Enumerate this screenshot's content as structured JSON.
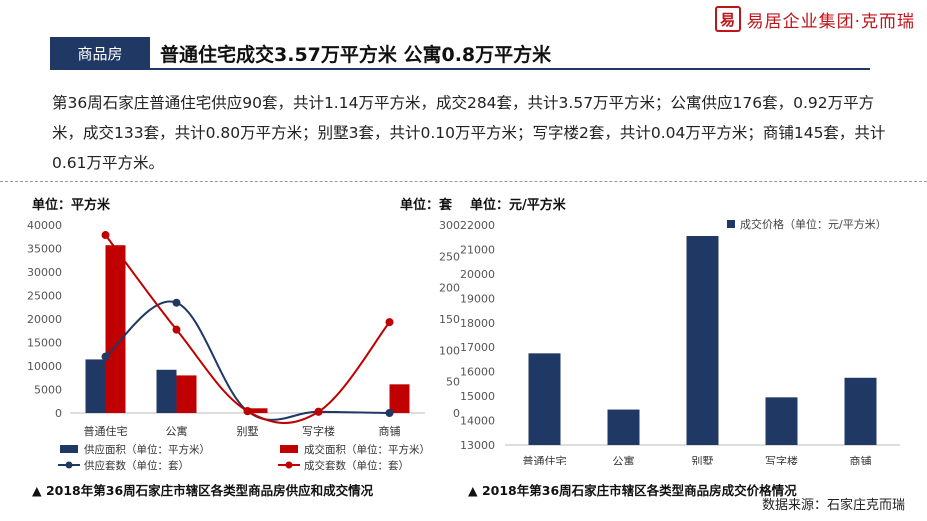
{
  "brand": {
    "seal_char": "易",
    "text": "易居企业集团·克而瑞"
  },
  "section": {
    "badge": "商品房",
    "headline": "普通住宅成交3.57万平方米 公寓0.8万平方米"
  },
  "paragraph": "第36周石家庄普通住宅供应90套，共计1.14万平方米，成交284套，共计3.57万平方米；公寓供应176套，0.92万平方米，成交133套，共计0.80万平方米；别墅3套，共计0.10万平方米；写字楼2套，共计0.04万平方米；商铺145套，共计0.61万平方米。",
  "left_unit_left": "单位：平方米",
  "left_unit_right": "单位：套",
  "right_unit": "单位：元/平方米",
  "caption_left": "▲ 2018年第36周石家庄市辖区各类型商品房供应和成交情况",
  "caption_right": "▲ 2018年第36周石家庄市辖区各类型商品房成交价格情况",
  "source": "数据来源：石家庄克而瑞",
  "colors": {
    "navy": "#1f3864",
    "red": "#c00000"
  },
  "chart_data": [
    {
      "type": "bar+line",
      "categories": [
        "普通住宅",
        "公寓",
        "别墅",
        "写字楼",
        "商铺"
      ],
      "ylim_left": [
        0,
        40000
      ],
      "yticks_left": [
        0,
        5000,
        10000,
        15000,
        20000,
        25000,
        30000,
        35000,
        40000
      ],
      "ylim_right": [
        0,
        300
      ],
      "yticks_right": [
        0,
        50,
        100,
        150,
        200,
        250,
        300
      ],
      "series": [
        {
          "name": "供应面积（单位：平方米）",
          "kind": "bar",
          "axis": "left",
          "color": "#1f3864",
          "values": [
            11400,
            9200,
            0,
            0,
            0
          ]
        },
        {
          "name": "成交面积（单位：平方米）",
          "kind": "bar",
          "axis": "left",
          "color": "#c00000",
          "values": [
            35700,
            8000,
            1000,
            400,
            6100
          ]
        },
        {
          "name": "供应套数（单位：套）",
          "kind": "line",
          "axis": "right",
          "color": "#1f3864",
          "values": [
            90,
            176,
            3,
            2,
            0
          ]
        },
        {
          "name": "成交套数（单位：套）",
          "kind": "line",
          "axis": "right",
          "color": "#c00000",
          "values": [
            284,
            133,
            3,
            2,
            145
          ]
        }
      ],
      "legend_position": "bottom"
    },
    {
      "type": "bar",
      "categories": [
        "普通住宅",
        "公寓",
        "别墅",
        "写字楼",
        "商铺"
      ],
      "ylim": [
        13000,
        22000
      ],
      "yticks": [
        13000,
        14000,
        15000,
        16000,
        17000,
        18000,
        19000,
        20000,
        21000,
        22000
      ],
      "series": [
        {
          "name": "成交价格（单位：元/平方米）",
          "color": "#1f3864",
          "values": [
            16750,
            14450,
            21550,
            14950,
            15750
          ]
        }
      ],
      "legend_position": "top-right"
    }
  ]
}
